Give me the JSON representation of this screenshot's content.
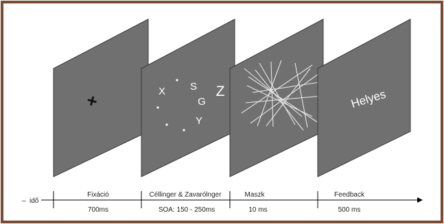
{
  "colors": {
    "border": "#7a4a33",
    "panel_fill": "#707070",
    "panel_edge": "#3a3a3a",
    "stimulus": "#ffffff",
    "fixation": "#111111",
    "axis": "#000000"
  },
  "panels": [
    {
      "name": "fixation",
      "content": "fixation-cross",
      "fixation_symbol": "+"
    },
    {
      "name": "target-distractor",
      "content": "letters",
      "letters": [
        "X",
        "S",
        "G",
        "Z",
        "Y"
      ]
    },
    {
      "name": "mask",
      "content": "line-mask"
    },
    {
      "name": "feedback",
      "content": "text",
      "text": "Helyes"
    }
  ],
  "timeline": {
    "axis_label": "idő",
    "axis_prefix": "–",
    "phases": [
      {
        "title": "Fixáció",
        "duration": "700ms"
      },
      {
        "title": "Céllinger & Zavarólnger",
        "duration": "SOA: 150 - 250ms"
      },
      {
        "title": "Maszk",
        "duration": "10 ms"
      },
      {
        "title": "Feedback",
        "duration": "500 ms"
      }
    ]
  }
}
